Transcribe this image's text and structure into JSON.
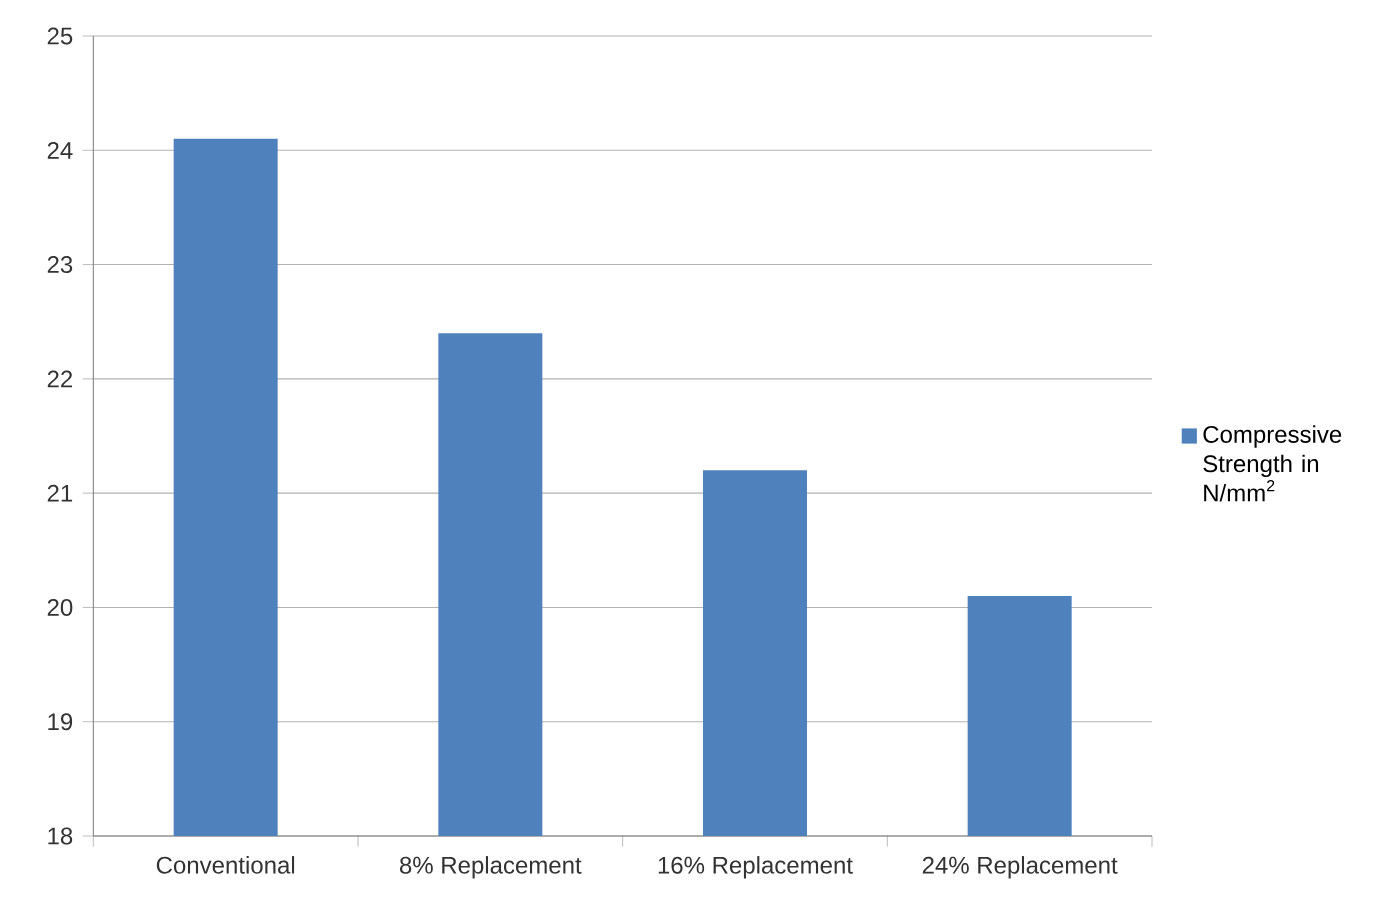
{
  "chart_data": {
    "type": "bar",
    "categories": [
      "Conventional",
      "8% Replacement",
      "16% Replacement",
      "24% Replacement"
    ],
    "series": [
      {
        "name": "Compressive Strength in N/mm$^{2}$",
        "color": "#4f81bd",
        "values": [
          24.1,
          22.4,
          21.2,
          20.1
        ]
      }
    ],
    "ylim": [
      18,
      25
    ],
    "yticks": [
      18,
      19,
      20,
      21,
      22,
      23,
      24,
      25
    ],
    "grid": "y",
    "legend": "right"
  }
}
